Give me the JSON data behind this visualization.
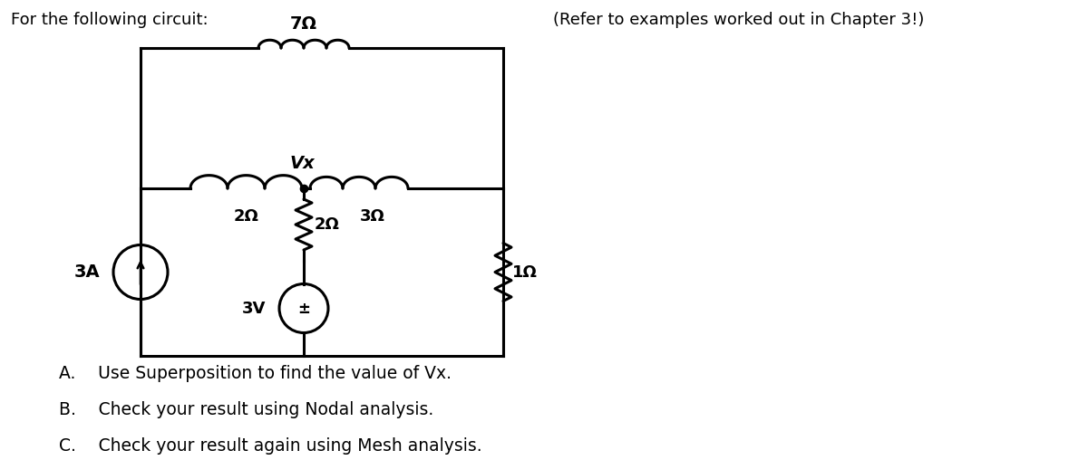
{
  "title_left": "For the following circuit:",
  "title_right": "(Refer to examples worked out in Chapter 3!)",
  "items": [
    "A.  Use Superposition to find the value of Vx.",
    "B.  Check your result using Nodal analysis.",
    "C.  Check your result again using Mesh analysis."
  ],
  "bg_color": "#ffffff",
  "text_color": "#000000",
  "font_size_title": 13,
  "font_size_items": 13.5,
  "circuit": {
    "r7_label": "7Ω",
    "r2_left_label": "2Ω",
    "r2_mid_label": "2Ω",
    "r3_label": "3Ω",
    "r1_label": "1Ω",
    "cs_label": "3A",
    "vs_label": "3V",
    "vx_label": "Vx"
  }
}
